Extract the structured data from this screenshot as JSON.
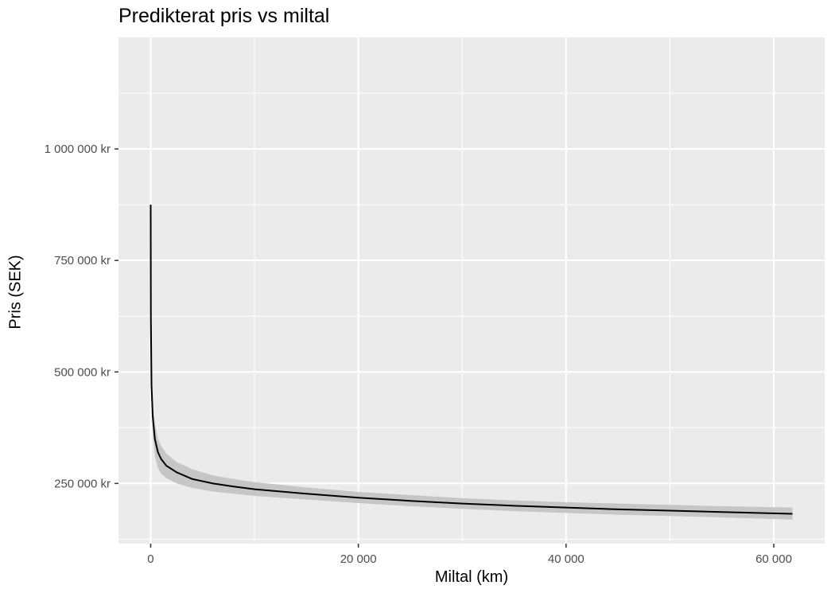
{
  "chart_data": {
    "type": "line",
    "title": "Predikterat pris vs miltal",
    "xlabel": "Miltal (km)",
    "ylabel": "Pris (SEK)",
    "xlim": [
      -3100,
      64900
    ],
    "ylim": [
      115000,
      1250000
    ],
    "x_ticks": [
      0,
      20000,
      40000,
      60000
    ],
    "x_tick_labels": [
      "0",
      "20 000",
      "40 000",
      "60 000"
    ],
    "y_ticks": [
      250000,
      500000,
      750000,
      1000000
    ],
    "y_tick_labels": [
      "250 000 kr",
      "500 000 kr",
      "750 000 kr",
      "1 000 000 kr"
    ],
    "grid": true,
    "colors": {
      "panel_background": "#ebebeb",
      "grid_line": "#ffffff",
      "line": "#000000",
      "ribbon": "#c6c6c6",
      "tick_text": "#4d4d4d"
    },
    "series": [
      {
        "type": "line_with_confidence_band",
        "points": [
          {
            "x": 0,
            "y": 875000,
            "lower": 875000,
            "upper": 875000
          },
          {
            "x": 20,
            "y": 620000,
            "lower": 600000,
            "upper": 640000
          },
          {
            "x": 80,
            "y": 470000,
            "lower": 440000,
            "upper": 490000
          },
          {
            "x": 200,
            "y": 400000,
            "lower": 365000,
            "upper": 425000
          },
          {
            "x": 400,
            "y": 350000,
            "lower": 310000,
            "upper": 385000
          },
          {
            "x": 700,
            "y": 320000,
            "lower": 285000,
            "upper": 350000
          },
          {
            "x": 1000,
            "y": 305000,
            "lower": 272000,
            "upper": 335000
          },
          {
            "x": 1500,
            "y": 290000,
            "lower": 262000,
            "upper": 317000
          },
          {
            "x": 2500,
            "y": 275000,
            "lower": 250000,
            "upper": 298000
          },
          {
            "x": 4000,
            "y": 260000,
            "lower": 240000,
            "upper": 282000
          },
          {
            "x": 6000,
            "y": 250000,
            "lower": 232000,
            "upper": 268000
          },
          {
            "x": 8000,
            "y": 243000,
            "lower": 227000,
            "upper": 260000
          },
          {
            "x": 10000,
            "y": 237000,
            "lower": 222000,
            "upper": 253000
          },
          {
            "x": 15000,
            "y": 227000,
            "lower": 214000,
            "upper": 241000
          },
          {
            "x": 20000,
            "y": 218000,
            "lower": 206000,
            "upper": 231000
          },
          {
            "x": 25000,
            "y": 211000,
            "lower": 199000,
            "upper": 224000
          },
          {
            "x": 30000,
            "y": 205000,
            "lower": 193000,
            "upper": 217000
          },
          {
            "x": 35000,
            "y": 200000,
            "lower": 188000,
            "upper": 212000
          },
          {
            "x": 40000,
            "y": 196000,
            "lower": 184000,
            "upper": 208000
          },
          {
            "x": 45000,
            "y": 192000,
            "lower": 180000,
            "upper": 205000
          },
          {
            "x": 50000,
            "y": 189000,
            "lower": 177000,
            "upper": 202000
          },
          {
            "x": 55000,
            "y": 186000,
            "lower": 174000,
            "upper": 199000
          },
          {
            "x": 61800,
            "y": 182000,
            "lower": 169000,
            "upper": 196000
          }
        ]
      }
    ]
  }
}
